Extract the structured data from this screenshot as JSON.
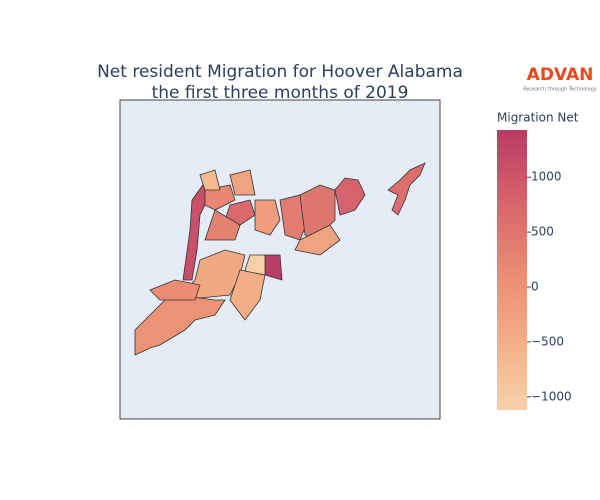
{
  "chart_data": {
    "type": "choropleth",
    "title": "Net resident Migration for Hoover Alabama",
    "subtitle": "the first three months of 2019",
    "logo": {
      "name": "ADVAN",
      "tagline": "Research through Technology"
    },
    "colorbar_title": "Migration Net",
    "zlim": [
      -1120,
      1430
    ],
    "zticks": [
      {
        "value": -1000,
        "label": "−1000"
      },
      {
        "value": -500,
        "label": "−500"
      },
      0,
      500,
      1000
    ],
    "colorscale": [
      "#f6d2a9",
      "#f3ad86",
      "#ea8a72",
      "#d6636c",
      "#b83c63"
    ],
    "values": [
      1100,
      0,
      -400,
      1400,
      -1100,
      200,
      700,
      300,
      -200,
      400,
      500,
      800,
      -300,
      100,
      -500,
      600,
      -700,
      -300
    ]
  }
}
